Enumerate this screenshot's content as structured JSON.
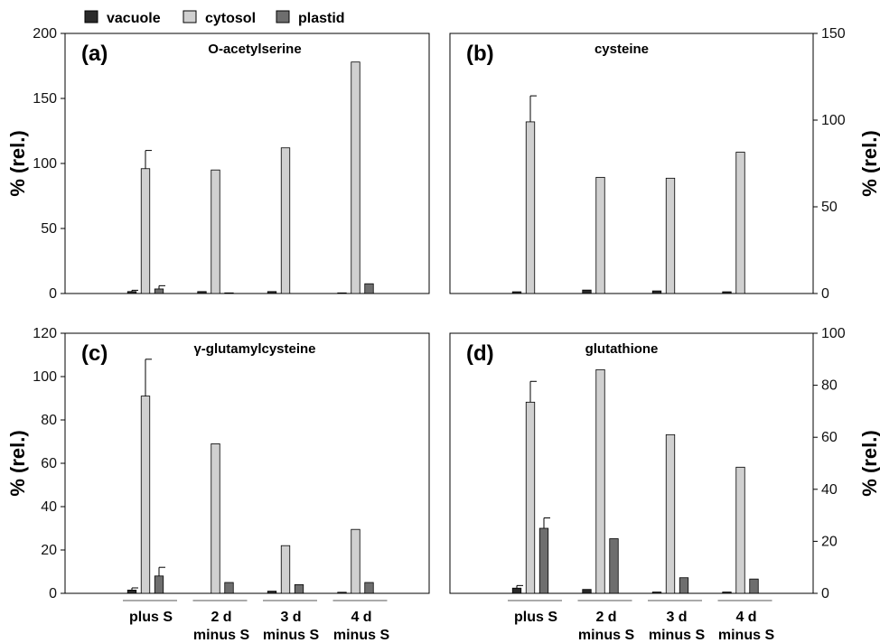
{
  "colors": {
    "vacuole": "#2a2a2a",
    "cytosol": "#d0d0d0",
    "plastid": "#6e6e6e",
    "axis": "#000000"
  },
  "chart_data": [
    {
      "type": "bar",
      "panel": "(a)",
      "title": "O-acetylserine",
      "ylabel": "% (rel.)",
      "y_axis_side": "left",
      "ylim": [
        0,
        200
      ],
      "yticks": [
        0,
        50,
        100,
        150,
        200
      ],
      "categories": [
        "plus S",
        "2 d minus S",
        "3 d minus S",
        "4 d minus S"
      ],
      "series": [
        {
          "name": "vacuole",
          "values": [
            1.5,
            1.5,
            1.5,
            0.5
          ],
          "errors": [
            1,
            0,
            0,
            0
          ]
        },
        {
          "name": "cytosol",
          "values": [
            96,
            95,
            112,
            178
          ],
          "errors": [
            14,
            0,
            0,
            0
          ]
        },
        {
          "name": "plastid",
          "values": [
            3.5,
            0.5,
            0,
            7.5
          ],
          "errors": [
            2.5,
            0,
            0,
            0
          ]
        }
      ],
      "grid": false
    },
    {
      "type": "bar",
      "panel": "(b)",
      "title": "cysteine",
      "ylabel": "% (rel.)",
      "y_axis_side": "right",
      "ylim": [
        0,
        150
      ],
      "yticks": [
        0,
        50,
        100,
        150
      ],
      "categories": [
        "plus S",
        "2 d minus S",
        "3 d minus S",
        "4 d minus S"
      ],
      "series": [
        {
          "name": "vacuole",
          "values": [
            1,
            2,
            1.5,
            1
          ],
          "errors": [
            0,
            0,
            0,
            0
          ]
        },
        {
          "name": "cytosol",
          "values": [
            99,
            67,
            66.5,
            81.5
          ],
          "errors": [
            15,
            0,
            0,
            0
          ]
        },
        {
          "name": "plastid",
          "values": [
            0,
            0,
            0,
            0
          ],
          "errors": [
            0,
            0,
            0,
            0
          ]
        }
      ],
      "grid": false
    },
    {
      "type": "bar",
      "panel": "(c)",
      "title": "γ-glutamylcysteine",
      "ylabel": "% (rel.)",
      "y_axis_side": "left",
      "ylim": [
        0,
        120
      ],
      "yticks": [
        0,
        20,
        40,
        60,
        80,
        100,
        120
      ],
      "categories": [
        "plus S",
        "2 d minus S",
        "3 d minus S",
        "4 d minus S"
      ],
      "series": [
        {
          "name": "vacuole",
          "values": [
            1.5,
            0,
            1,
            0.5
          ],
          "errors": [
            1,
            0,
            0,
            0
          ]
        },
        {
          "name": "cytosol",
          "values": [
            91,
            69,
            22,
            29.5
          ],
          "errors": [
            17,
            0,
            0,
            0
          ]
        },
        {
          "name": "plastid",
          "values": [
            8,
            5,
            4,
            5
          ],
          "errors": [
            4,
            0,
            0,
            0
          ]
        }
      ],
      "grid": false
    },
    {
      "type": "bar",
      "panel": "(d)",
      "title": "glutathione",
      "ylabel": "% (rel.)",
      "y_axis_side": "right",
      "ylim": [
        0,
        100
      ],
      "yticks": [
        0,
        20,
        40,
        60,
        80,
        100
      ],
      "categories": [
        "plus S",
        "2 d minus S",
        "3 d minus S",
        "4 d minus S"
      ],
      "series": [
        {
          "name": "vacuole",
          "values": [
            2,
            1.5,
            0.5,
            0.5
          ],
          "errors": [
            1,
            0,
            0,
            0
          ]
        },
        {
          "name": "cytosol",
          "values": [
            73.5,
            86,
            61,
            48.5
          ],
          "errors": [
            8,
            0,
            0,
            0
          ]
        },
        {
          "name": "plastid",
          "values": [
            25,
            21,
            6,
            5.5
          ],
          "errors": [
            4,
            0,
            0,
            0
          ]
        }
      ],
      "grid": false
    }
  ],
  "legend": {
    "placement": "top-left",
    "items": [
      {
        "label": "vacuole",
        "color_key": "vacuole"
      },
      {
        "label": "cytosol",
        "color_key": "cytosol"
      },
      {
        "label": "plastid",
        "color_key": "plastid"
      }
    ]
  },
  "x_labels": [
    {
      "line1": "plus S",
      "line2": ""
    },
    {
      "line1": "2 d",
      "line2": "minus S"
    },
    {
      "line1": "3 d",
      "line2": "minus S"
    },
    {
      "line1": "4 d",
      "line2": "minus S"
    }
  ]
}
